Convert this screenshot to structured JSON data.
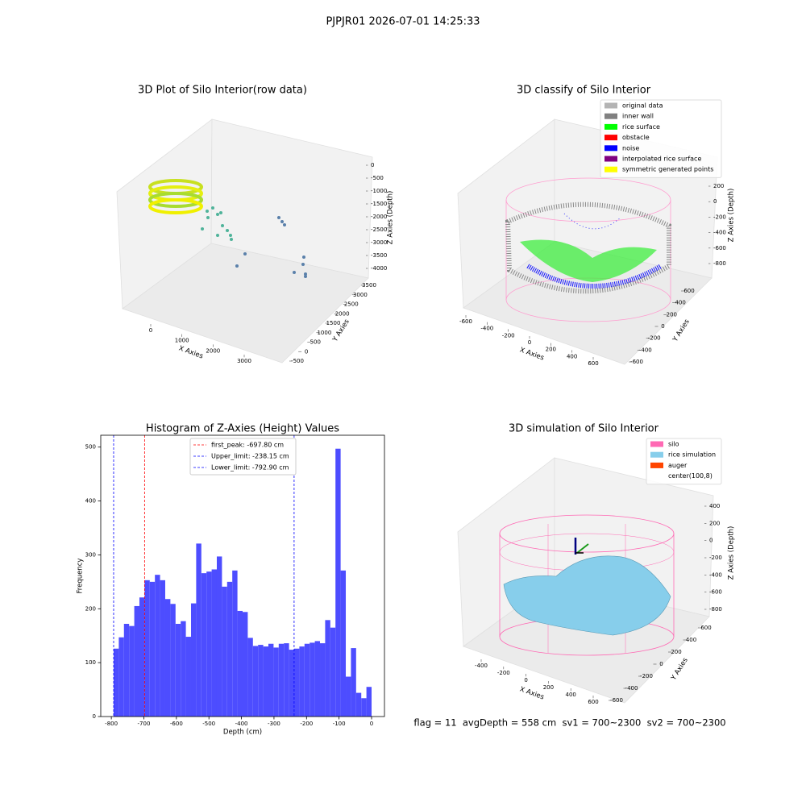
{
  "title": "PJPJR01 2026-07-01 14:25:33",
  "status": "flag = 11  avgDepth = 558 cm  sv1 = 700~2300  sv2 = 700~2300",
  "chart_data": [
    {
      "type": "scatter3d",
      "title": "3D Plot of Silo Interior(row data)",
      "xlabel": "X Axies",
      "ylabel": "Y Axies",
      "zlabel": "Z Axies (Depth)",
      "xlim": [
        -900,
        3700
      ],
      "ylim": [
        -700,
        3700
      ],
      "zlim": [
        -4200,
        100
      ],
      "xticks": [
        0,
        1000,
        2000,
        3000
      ],
      "yticks": [
        -500,
        0,
        500,
        1000,
        1500,
        2000,
        2500,
        3000,
        3500
      ],
      "zticks": [
        0,
        -500,
        -1000,
        -1500,
        -2000,
        -2500,
        -3000,
        -3500,
        -4000
      ]
    },
    {
      "type": "scatter3d",
      "title": "3D classify of Silo Interior",
      "xlabel": "X Axies",
      "ylabel": "Y Axies",
      "zlabel": "Z Axies (Depth)",
      "xlim": [
        -700,
        700
      ],
      "ylim": [
        -700,
        700
      ],
      "zlim": [
        -900,
        400
      ],
      "xticks": [
        -600,
        -400,
        -200,
        0,
        200,
        400,
        600
      ],
      "yticks": [
        -600,
        -400,
        -200,
        0,
        200,
        400,
        600
      ],
      "zticks": [
        200,
        0,
        -200,
        -400,
        -600,
        -800
      ],
      "legend_loc": "upper right",
      "legend": [
        {
          "name": "original data",
          "color": "#b3b3b3"
        },
        {
          "name": "inner wall",
          "color": "#808080"
        },
        {
          "name": "rice surface",
          "color": "#00ff00"
        },
        {
          "name": "obstacle",
          "color": "#ff0000"
        },
        {
          "name": "noise",
          "color": "#0000ff"
        },
        {
          "name": "interpolated rice surface",
          "color": "#800080"
        },
        {
          "name": "symmetric generated points",
          "color": "#ffff00"
        }
      ]
    },
    {
      "type": "histogram",
      "title": "Histogram of Z-Axies (Height) Values",
      "xlabel": "Depth (cm)",
      "ylabel": "Frequency",
      "color": "#4d4dff",
      "xlim": [
        -832.5,
        39.6
      ],
      "ylim": [
        0,
        522
      ],
      "xticks": [
        -800,
        -700,
        -600,
        -500,
        -400,
        -300,
        -200,
        -100,
        0
      ],
      "yticks": [
        0,
        100,
        200,
        300,
        400,
        500
      ],
      "bins": [
        -792.9,
        -777.04,
        -761.18,
        -745.33,
        -729.47,
        -713.61,
        -697.75,
        -681.89,
        -666.04,
        -650.18,
        -634.32,
        -618.46,
        -602.6,
        -586.75,
        -570.89,
        -555.03,
        -539.17,
        -523.31,
        -507.46,
        -491.6,
        -475.74,
        -459.88,
        -444.02,
        -428.17,
        -412.31,
        -396.45,
        -380.59,
        -364.73,
        -348.88,
        -333.02,
        -317.16,
        -301.3,
        -285.44,
        -269.59,
        -253.73,
        -237.87,
        -222.01,
        -206.15,
        -190.3,
        -174.44,
        -158.58,
        -142.72,
        -126.86,
        -111.01,
        -95.15,
        -79.29,
        -63.43,
        -47.57,
        -31.72,
        -15.86,
        0
      ],
      "values": [
        126,
        147,
        172,
        168,
        205,
        221,
        253,
        250,
        263,
        253,
        218,
        209,
        172,
        177,
        148,
        210,
        321,
        266,
        269,
        273,
        297,
        241,
        250,
        271,
        196,
        194,
        146,
        131,
        133,
        130,
        135,
        128,
        135,
        136,
        124,
        126,
        130,
        135,
        137,
        140,
        136,
        179,
        165,
        497,
        271,
        74,
        127,
        44,
        34,
        55
      ],
      "vlines": [
        {
          "label": "first_peak: -697.80 cm",
          "value": -697.8,
          "color": "#ff0000"
        },
        {
          "label": "Upper_limit: -238.15 cm",
          "value": -238.15,
          "color": "#0000ff"
        },
        {
          "label": "Lower_limit: -792.90 cm",
          "value": -792.9,
          "color": "#0000ff"
        }
      ],
      "legend_loc": "upper center"
    },
    {
      "type": "surface3d",
      "title": "3D simulation of Silo Interior",
      "xlabel": "X Axies",
      "ylabel": "Y Axies",
      "zlabel": "Z Axies (Depth)",
      "xlim": [
        -550,
        750
      ],
      "ylim": [
        -700,
        700
      ],
      "zlim": [
        -900,
        450
      ],
      "xticks": [
        -400,
        -200,
        0,
        200,
        400,
        600
      ],
      "yticks": [
        -600,
        -400,
        -200,
        0,
        200,
        400,
        600
      ],
      "zticks": [
        400,
        200,
        0,
        -200,
        -400,
        -600,
        -800
      ],
      "legend_loc": "upper right",
      "legend": [
        {
          "name": "silo",
          "color": "#ff69b4"
        },
        {
          "name": "rice simulation",
          "color": "#87ceeb"
        },
        {
          "name": "auger",
          "color": "#ff4500"
        },
        {
          "name": "center(100,8)",
          "color": "#ffffff"
        }
      ]
    }
  ]
}
